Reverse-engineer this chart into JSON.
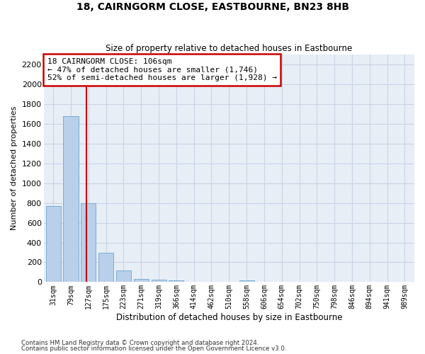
{
  "title1": "18, CAIRNGORM CLOSE, EASTBOURNE, BN23 8HB",
  "title2": "Size of property relative to detached houses in Eastbourne",
  "xlabel": "Distribution of detached houses by size in Eastbourne",
  "ylabel": "Number of detached properties",
  "categories": [
    "31sqm",
    "79sqm",
    "127sqm",
    "175sqm",
    "223sqm",
    "271sqm",
    "319sqm",
    "366sqm",
    "414sqm",
    "462sqm",
    "510sqm",
    "558sqm",
    "606sqm",
    "654sqm",
    "702sqm",
    "750sqm",
    "798sqm",
    "846sqm",
    "894sqm",
    "941sqm",
    "989sqm"
  ],
  "values": [
    770,
    1680,
    800,
    300,
    120,
    35,
    25,
    20,
    5,
    0,
    0,
    20,
    0,
    0,
    0,
    0,
    0,
    0,
    0,
    0,
    0
  ],
  "bar_color": "#b8d0ea",
  "bar_edgecolor": "#7aadd4",
  "grid_color": "#c8d4e4",
  "background_color": "#e8eef6",
  "vline_x": 1.88,
  "vline_color": "#cc0000",
  "annotation_text": "18 CAIRNGORM CLOSE: 106sqm\n← 47% of detached houses are smaller (1,746)\n52% of semi-detached houses are larger (1,928) →",
  "annotation_box_color": "#ffffff",
  "annotation_box_edgecolor": "#cc0000",
  "ylim": [
    0,
    2300
  ],
  "yticks": [
    0,
    200,
    400,
    600,
    800,
    1000,
    1200,
    1400,
    1600,
    1800,
    2000,
    2200
  ],
  "footer1": "Contains HM Land Registry data © Crown copyright and database right 2024.",
  "footer2": "Contains public sector information licensed under the Open Government Licence v3.0."
}
